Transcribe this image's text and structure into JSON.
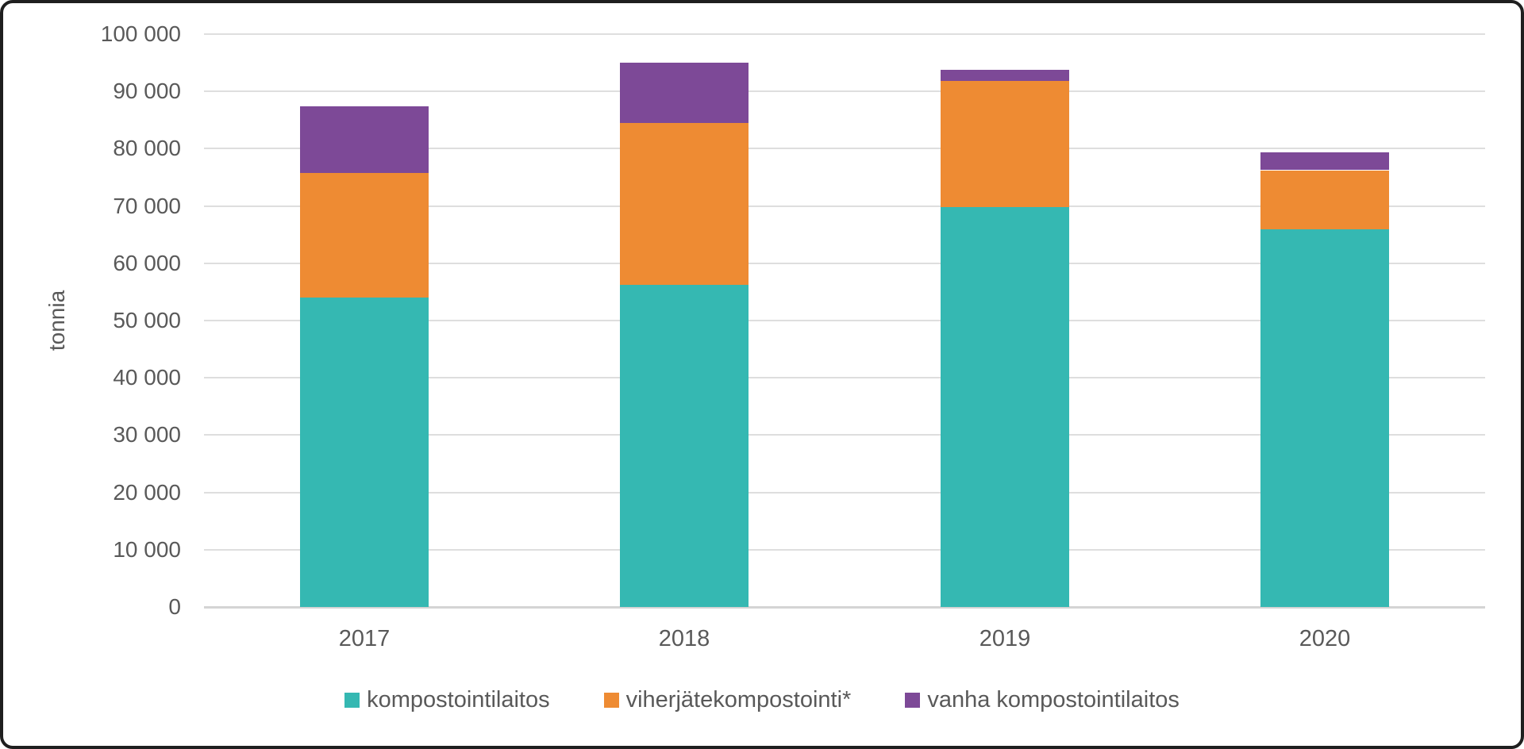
{
  "chart_data": {
    "type": "bar",
    "stacked": true,
    "title": "",
    "ylabel": "tonnia",
    "xlabel": "",
    "categories": [
      "2017",
      "2018",
      "2019",
      "2020"
    ],
    "series": [
      {
        "name": "kompostointilaitos",
        "color": "#35b8b2",
        "values": [
          54000,
          56200,
          69800,
          66000
        ]
      },
      {
        "name": "viherjätekompostointi*",
        "color": "#ee8b33",
        "values": [
          21800,
          28300,
          22000,
          10200
        ]
      },
      {
        "name": "vanha kompostointilaitos",
        "color": "#7d4997",
        "values": [
          11600,
          10500,
          1900,
          3100
        ]
      }
    ],
    "stack_totals": [
      87400,
      95000,
      93700,
      79300
    ],
    "ylim": [
      0,
      100000
    ],
    "ytick_step": 10000,
    "yticks": [
      "0",
      "10 000",
      "20 000",
      "30 000",
      "40 000",
      "50 000",
      "60 000",
      "70 000",
      "80 000",
      "90 000",
      "100 000"
    ],
    "grid": true,
    "legend_position": "bottom"
  },
  "style": {
    "gridline_color": "#dedede",
    "axisline_color": "#d4d4d4",
    "text_color": "#595959",
    "frame_border_color": "#1f1f1f",
    "background": "#ffffff"
  }
}
